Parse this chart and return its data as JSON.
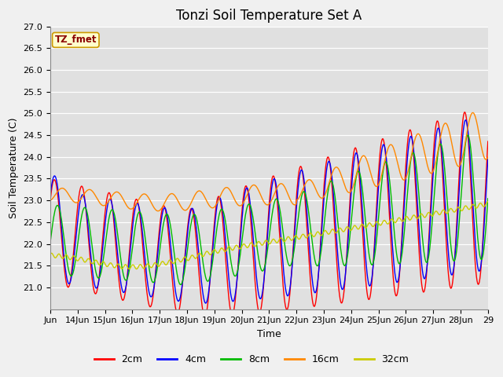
{
  "title": "Tonzi Soil Temperature Set A",
  "ylabel": "Soil Temperature (C)",
  "xlabel": "Time",
  "ylim": [
    20.5,
    27.0
  ],
  "yticks": [
    21.0,
    21.5,
    22.0,
    22.5,
    23.0,
    23.5,
    24.0,
    24.5,
    25.0,
    25.5,
    26.0,
    26.5,
    27.0
  ],
  "legend_label": "TZ_fmet",
  "series_colors": [
    "#ff0000",
    "#0000ff",
    "#00bb00",
    "#ff8800",
    "#cccc00"
  ],
  "series_labels": [
    "2cm",
    "4cm",
    "8cm",
    "16cm",
    "32cm"
  ],
  "fig_facecolor": "#f0f0f0",
  "ax_facecolor": "#e0e0e0",
  "title_fontsize": 12,
  "axis_label_fontsize": 9,
  "tick_fontsize": 8
}
